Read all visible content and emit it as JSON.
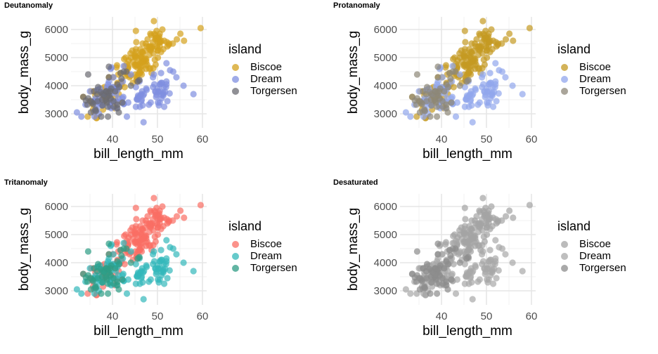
{
  "chart_data": [
    {
      "type": "scatter",
      "title": "Deutanomaly",
      "xlabel": "bill_length_mm",
      "ylabel": "body_mass_g",
      "xlim": [
        32,
        60
      ],
      "ylim": [
        2700,
        6300
      ],
      "xticks": [
        "40",
        "50",
        "60"
      ],
      "yticks": [
        "3000",
        "4000",
        "5000",
        "6000"
      ],
      "grid": true,
      "legend_title": "island",
      "legend_position": "right",
      "series": [
        {
          "name": "Biscoe",
          "color": "#D4A11C"
        },
        {
          "name": "Dream",
          "color": "#7F8FE0"
        },
        {
          "name": "Torgersen",
          "color": "#6B6B72"
        }
      ]
    },
    {
      "type": "scatter",
      "title": "Protanomaly",
      "xlabel": "bill_length_mm",
      "ylabel": "body_mass_g",
      "xlim": [
        32,
        60
      ],
      "ylim": [
        2700,
        6300
      ],
      "xticks": [
        "40",
        "50",
        "60"
      ],
      "yticks": [
        "3000",
        "4000",
        "5000",
        "6000"
      ],
      "grid": true,
      "legend_title": "island",
      "legend_position": "right",
      "series": [
        {
          "name": "Biscoe",
          "color": "#C49A22"
        },
        {
          "name": "Dream",
          "color": "#92A6EC"
        },
        {
          "name": "Torgersen",
          "color": "#8D8778"
        }
      ]
    },
    {
      "type": "scatter",
      "title": "Tritanomaly",
      "xlabel": "bill_length_mm",
      "ylabel": "body_mass_g",
      "xlim": [
        32,
        60
      ],
      "ylim": [
        2700,
        6300
      ],
      "xticks": [
        "40",
        "50",
        "60"
      ],
      "yticks": [
        "3000",
        "4000",
        "5000",
        "6000"
      ],
      "grid": true,
      "legend_title": "island",
      "legend_position": "right",
      "series": [
        {
          "name": "Biscoe",
          "color": "#FA6E64"
        },
        {
          "name": "Dream",
          "color": "#33B8BA"
        },
        {
          "name": "Torgersen",
          "color": "#2E9C84"
        }
      ]
    },
    {
      "type": "scatter",
      "title": "Desaturated",
      "xlabel": "bill_length_mm",
      "ylabel": "body_mass_g",
      "xlim": [
        32,
        60
      ],
      "ylim": [
        2700,
        6300
      ],
      "xticks": [
        "40",
        "50",
        "60"
      ],
      "yticks": [
        "3000",
        "4000",
        "5000",
        "6000"
      ],
      "grid": true,
      "legend_title": "island",
      "legend_position": "right",
      "series": [
        {
          "name": "Biscoe",
          "color": "#A4A4A4"
        },
        {
          "name": "Dream",
          "color": "#A8A8A8"
        },
        {
          "name": "Torgersen",
          "color": "#8C8C8C"
        }
      ]
    }
  ],
  "points": {
    "Biscoe": [
      [
        37.8,
        3400
      ],
      [
        37.7,
        3600
      ],
      [
        35.9,
        3800
      ],
      [
        38.2,
        3950
      ],
      [
        38.8,
        3800
      ],
      [
        35.3,
        3800
      ],
      [
        40.6,
        3550
      ],
      [
        40.5,
        3200
      ],
      [
        37.9,
        3150
      ],
      [
        40.5,
        3950
      ],
      [
        39.6,
        3500
      ],
      [
        40.1,
        4300
      ],
      [
        35.0,
        3450
      ],
      [
        42.0,
        4050
      ],
      [
        34.5,
        2900
      ],
      [
        41.4,
        3700
      ],
      [
        39.0,
        3550
      ],
      [
        40.6,
        3800
      ],
      [
        36.5,
        2850
      ],
      [
        37.6,
        3750
      ],
      [
        35.7,
        3150
      ],
      [
        41.3,
        4400
      ],
      [
        37.6,
        3600
      ],
      [
        41.1,
        4050
      ],
      [
        36.4,
        2850
      ],
      [
        41.6,
        3950
      ],
      [
        35.5,
        3350
      ],
      [
        41.1,
        4100
      ],
      [
        35.9,
        3050
      ],
      [
        41.8,
        4450
      ],
      [
        33.5,
        3600
      ],
      [
        39.7,
        3900
      ],
      [
        39.6,
        3550
      ],
      [
        45.6,
        4150
      ],
      [
        42.2,
        3400
      ],
      [
        36.3,
        3100
      ],
      [
        39.2,
        4300
      ],
      [
        41.0,
        4725
      ],
      [
        43.2,
        4775
      ],
      [
        37.7,
        3500
      ],
      [
        40.9,
        3400
      ],
      [
        38.2,
        3450
      ],
      [
        37.5,
        3900
      ],
      [
        39.0,
        3700
      ],
      [
        36.2,
        3650
      ],
      [
        46.1,
        4500
      ],
      [
        50.0,
        5700
      ],
      [
        48.7,
        4450
      ],
      [
        50.0,
        5700
      ],
      [
        47.6,
        5400
      ],
      [
        46.5,
        4550
      ],
      [
        45.4,
        4800
      ],
      [
        46.7,
        5200
      ],
      [
        43.3,
        4400
      ],
      [
        46.8,
        5150
      ],
      [
        40.9,
        4650
      ],
      [
        49.0,
        5550
      ],
      [
        45.5,
        4650
      ],
      [
        48.4,
        5850
      ],
      [
        45.8,
        4200
      ],
      [
        49.3,
        5850
      ],
      [
        42.0,
        4150
      ],
      [
        49.2,
        6300
      ],
      [
        46.2,
        4800
      ],
      [
        48.7,
        5350
      ],
      [
        50.2,
        5700
      ],
      [
        45.1,
        5000
      ],
      [
        46.5,
        4400
      ],
      [
        46.3,
        5050
      ],
      [
        42.9,
        5000
      ],
      [
        46.1,
        5100
      ],
      [
        44.5,
        4100
      ],
      [
        47.8,
        5650
      ],
      [
        48.2,
        4600
      ],
      [
        50.0,
        5550
      ],
      [
        47.3,
        5250
      ],
      [
        42.8,
        4700
      ],
      [
        45.1,
        5050
      ],
      [
        59.6,
        6050
      ],
      [
        49.1,
        5150
      ],
      [
        48.4,
        5400
      ],
      [
        42.6,
        4950
      ],
      [
        44.4,
        5250
      ],
      [
        44.0,
        4350
      ],
      [
        48.7,
        5350
      ],
      [
        42.7,
        3950
      ],
      [
        49.6,
        5700
      ],
      [
        45.3,
        4300
      ],
      [
        49.6,
        4750
      ],
      [
        50.5,
        5550
      ],
      [
        43.6,
        4900
      ],
      [
        45.5,
        4200
      ],
      [
        50.5,
        5400
      ],
      [
        44.9,
        5100
      ],
      [
        45.2,
        5300
      ],
      [
        46.6,
        4850
      ],
      [
        48.5,
        5300
      ],
      [
        45.1,
        4400
      ],
      [
        50.1,
        5000
      ],
      [
        46.5,
        4900
      ],
      [
        45.0,
        5050
      ],
      [
        43.8,
        4300
      ],
      [
        45.5,
        5000
      ],
      [
        43.2,
        4450
      ],
      [
        50.4,
        5550
      ],
      [
        45.3,
        4200
      ],
      [
        46.2,
        5300
      ],
      [
        45.7,
        4400
      ],
      [
        54.3,
        5650
      ],
      [
        45.8,
        4700
      ],
      [
        49.8,
        5700
      ],
      [
        46.2,
        4650
      ],
      [
        49.5,
        5800
      ],
      [
        43.5,
        4700
      ],
      [
        50.7,
        5550
      ],
      [
        47.7,
        4750
      ],
      [
        46.4,
        5000
      ],
      [
        48.2,
        5100
      ],
      [
        46.5,
        5200
      ],
      [
        46.4,
        4700
      ],
      [
        48.6,
        5800
      ],
      [
        47.5,
        4600
      ],
      [
        51.1,
        6000
      ],
      [
        45.2,
        4750
      ],
      [
        45.2,
        5950
      ],
      [
        49.1,
        4625
      ],
      [
        52.5,
        5450
      ],
      [
        47.4,
        4725
      ],
      [
        50.0,
        5350
      ],
      [
        44.9,
        4750
      ],
      [
        50.8,
        5600
      ],
      [
        43.4,
        4600
      ],
      [
        51.3,
        5300
      ],
      [
        47.5,
        4875
      ],
      [
        52.1,
        5550
      ],
      [
        47.5,
        4950
      ],
      [
        52.2,
        5400
      ],
      [
        45.5,
        4750
      ],
      [
        49.5,
        5650
      ],
      [
        44.5,
        4850
      ],
      [
        50.8,
        5200
      ],
      [
        49.4,
        4925
      ],
      [
        46.9,
        4875
      ],
      [
        48.4,
        4625
      ],
      [
        48.5,
        5250
      ],
      [
        50.5,
        5850
      ],
      [
        47.2,
        4925
      ],
      [
        46.8,
        4850
      ],
      [
        50.4,
        5750
      ],
      [
        45.2,
        5200
      ],
      [
        49.9,
        5400
      ],
      [
        55.9,
        5600
      ],
      [
        55.1,
        5850
      ],
      [
        53.4,
        5500
      ],
      [
        52.6,
        5500
      ],
      [
        51.5,
        5600
      ],
      [
        49.8,
        5950
      ],
      [
        48.1,
        5400
      ],
      [
        44.1,
        5000
      ],
      [
        47.2,
        4975
      ],
      [
        47.4,
        5500
      ],
      [
        50.1,
        5250
      ],
      [
        45.9,
        4450
      ],
      [
        48.8,
        5400
      ],
      [
        44.0,
        5150
      ],
      [
        48.2,
        5300
      ],
      [
        50.0,
        5250
      ],
      [
        42.9,
        4350
      ],
      [
        46.7,
        5500
      ],
      [
        45.0,
        4700
      ],
      [
        43.5,
        4650
      ],
      [
        45.3,
        5550
      ],
      [
        46.2,
        4450
      ]
    ],
    "Dream": [
      [
        39.5,
        3250
      ],
      [
        37.2,
        3900
      ],
      [
        39.5,
        3300
      ],
      [
        40.9,
        3900
      ],
      [
        36.4,
        3325
      ],
      [
        39.2,
        4150
      ],
      [
        38.8,
        3950
      ],
      [
        42.2,
        3550
      ],
      [
        37.6,
        3300
      ],
      [
        39.8,
        4650
      ],
      [
        36.5,
        3150
      ],
      [
        40.8,
        3900
      ],
      [
        36.0,
        3100
      ],
      [
        44.1,
        4400
      ],
      [
        37.0,
        3000
      ],
      [
        39.6,
        4600
      ],
      [
        41.1,
        3425
      ],
      [
        36.0,
        2900
      ],
      [
        42.3,
        4150
      ],
      [
        39.6,
        3950
      ],
      [
        40.1,
        3450
      ],
      [
        35.0,
        3800
      ],
      [
        42.5,
        4700
      ],
      [
        34.0,
        3325
      ],
      [
        37.0,
        3550
      ],
      [
        39.7,
        3200
      ],
      [
        40.2,
        4300
      ],
      [
        37.0,
        3400
      ],
      [
        40.6,
        3900
      ],
      [
        32.1,
        3050
      ],
      [
        40.7,
        3725
      ],
      [
        37.3,
        3450
      ],
      [
        39.0,
        4050
      ],
      [
        39.2,
        3900
      ],
      [
        36.6,
        3850
      ],
      [
        36.0,
        3450
      ],
      [
        37.8,
        3750
      ],
      [
        36.0,
        3450
      ],
      [
        41.5,
        4000
      ],
      [
        33.1,
        2900
      ],
      [
        38.1,
        3700
      ],
      [
        39.7,
        3450
      ],
      [
        38.6,
        3750
      ],
      [
        41.3,
        3550
      ],
      [
        36.8,
        3850
      ],
      [
        38.2,
        3700
      ],
      [
        41.1,
        3850
      ],
      [
        36.2,
        3550
      ],
      [
        40.2,
        3950
      ],
      [
        37.7,
        3300
      ],
      [
        39.6,
        3700
      ],
      [
        46.5,
        3500
      ],
      [
        50.0,
        3900
      ],
      [
        51.3,
        3650
      ],
      [
        45.4,
        3525
      ],
      [
        52.7,
        3725
      ],
      [
        45.2,
        3950
      ],
      [
        46.1,
        3250
      ],
      [
        51.3,
        3750
      ],
      [
        46.0,
        4150
      ],
      [
        51.3,
        3700
      ],
      [
        46.6,
        3800
      ],
      [
        51.7,
        3775
      ],
      [
        47.0,
        3700
      ],
      [
        52.0,
        4050
      ],
      [
        45.9,
        3575
      ],
      [
        50.5,
        4050
      ],
      [
        50.3,
        3300
      ],
      [
        58.0,
        3700
      ],
      [
        46.4,
        3450
      ],
      [
        49.2,
        4400
      ],
      [
        42.4,
        3600
      ],
      [
        48.5,
        3400
      ],
      [
        43.2,
        2900
      ],
      [
        50.6,
        3800
      ],
      [
        46.7,
        3300
      ],
      [
        52.0,
        4150
      ],
      [
        50.5,
        3400
      ],
      [
        49.5,
        3800
      ],
      [
        46.4,
        3700
      ],
      [
        52.8,
        4550
      ],
      [
        40.9,
        3200
      ],
      [
        54.2,
        4300
      ],
      [
        42.5,
        3350
      ],
      [
        51.0,
        4100
      ],
      [
        49.7,
        3600
      ],
      [
        47.5,
        3900
      ],
      [
        47.6,
        3850
      ],
      [
        52.0,
        4800
      ],
      [
        46.9,
        2700
      ],
      [
        53.5,
        4500
      ],
      [
        49.0,
        3950
      ],
      [
        46.2,
        3650
      ],
      [
        50.9,
        3550
      ],
      [
        45.5,
        3500
      ],
      [
        50.9,
        3675
      ],
      [
        50.8,
        4450
      ],
      [
        50.1,
        3400
      ],
      [
        49.0,
        4300
      ],
      [
        51.5,
        3250
      ],
      [
        49.8,
        3675
      ],
      [
        48.1,
        3325
      ],
      [
        51.4,
        3950
      ],
      [
        45.7,
        3600
      ],
      [
        50.7,
        4050
      ],
      [
        42.5,
        3350
      ],
      [
        52.2,
        3450
      ],
      [
        45.2,
        3250
      ],
      [
        49.3,
        4050
      ],
      [
        50.2,
        3800
      ],
      [
        45.6,
        3525
      ],
      [
        51.9,
        3950
      ],
      [
        46.8,
        3650
      ],
      [
        45.7,
        3650
      ],
      [
        55.8,
        4000
      ],
      [
        43.5,
        3400
      ],
      [
        49.6,
        3775
      ],
      [
        50.8,
        4100
      ],
      [
        50.2,
        3775
      ]
    ],
    "Torgersen": [
      [
        39.1,
        3750
      ],
      [
        39.5,
        3800
      ],
      [
        40.3,
        3250
      ],
      [
        36.7,
        3450
      ],
      [
        39.3,
        3650
      ],
      [
        38.9,
        3625
      ],
      [
        39.2,
        4675
      ],
      [
        34.1,
        3475
      ],
      [
        42.0,
        4250
      ],
      [
        37.8,
        3300
      ],
      [
        37.8,
        3700
      ],
      [
        41.1,
        3200
      ],
      [
        38.6,
        3800
      ],
      [
        34.6,
        4400
      ],
      [
        36.6,
        3700
      ],
      [
        38.7,
        3450
      ],
      [
        42.5,
        4500
      ],
      [
        34.4,
        3325
      ],
      [
        46.0,
        4200
      ],
      [
        35.9,
        3800
      ],
      [
        41.8,
        4450
      ],
      [
        33.5,
        3600
      ],
      [
        39.7,
        3900
      ],
      [
        39.6,
        3550
      ],
      [
        45.6,
        4150
      ],
      [
        42.2,
        3400
      ],
      [
        36.3,
        3100
      ],
      [
        39.2,
        4300
      ],
      [
        35.2,
        3050
      ],
      [
        38.6,
        3800
      ],
      [
        37.3,
        3775
      ],
      [
        35.7,
        3350
      ],
      [
        41.1,
        3325
      ],
      [
        36.2,
        3150
      ],
      [
        37.7,
        3500
      ],
      [
        40.2,
        3450
      ],
      [
        41.4,
        3050
      ],
      [
        35.2,
        3450
      ],
      [
        40.6,
        3800
      ],
      [
        38.8,
        3400
      ],
      [
        41.5,
        3950
      ],
      [
        39.0,
        3250
      ],
      [
        44.1,
        4000
      ],
      [
        38.5,
        3500
      ],
      [
        43.1,
        4500
      ],
      [
        36.8,
        3950
      ],
      [
        37.5,
        2900
      ],
      [
        38.1,
        3650
      ],
      [
        41.1,
        4050
      ],
      [
        35.5,
        3400
      ],
      [
        34.6,
        3550
      ],
      [
        39.0,
        2900
      ]
    ]
  }
}
